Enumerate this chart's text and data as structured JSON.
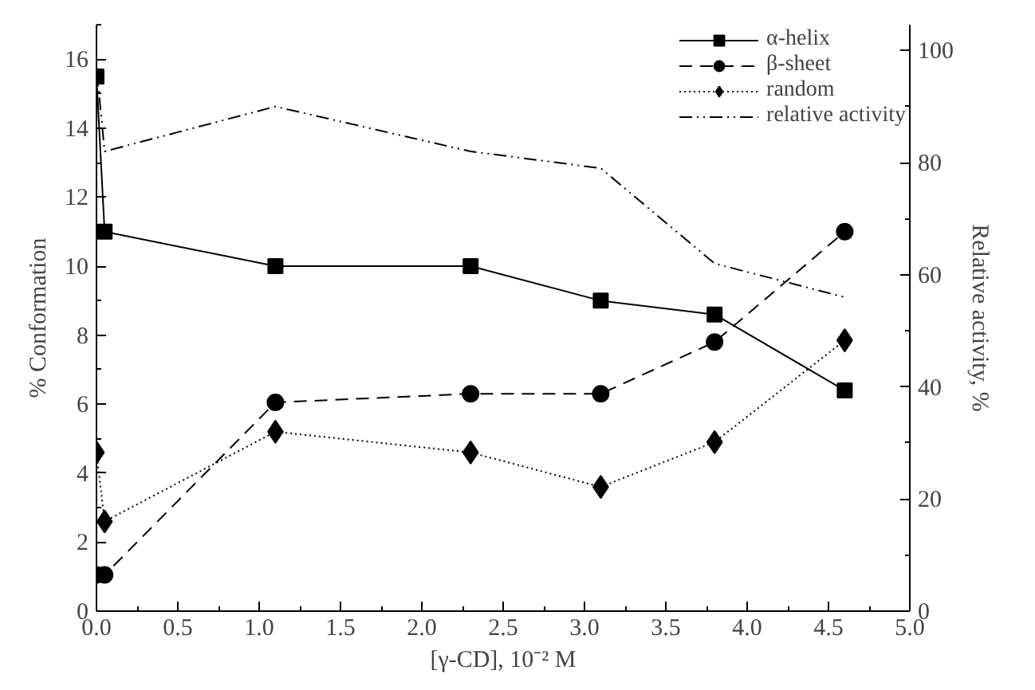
{
  "chart_data": {
    "type": "line",
    "xlabel": "[γ-CD], 10⁻² M",
    "ylabel": "% Conformation",
    "y2label": "Relative activity, %",
    "x": [
      0,
      0.05,
      1.1,
      2.3,
      3.1,
      3.8,
      4.6
    ],
    "xlim": [
      0,
      5
    ],
    "xticks": [
      {
        "value": 0,
        "label": "0.0"
      },
      0.5,
      {
        "value": 1,
        "label": "1.0"
      },
      1.5,
      {
        "value": 2,
        "label": "2.0"
      },
      2.5,
      {
        "value": 3,
        "label": "3.0"
      },
      3.5,
      {
        "value": 4,
        "label": "4.0"
      },
      4.5,
      {
        "value": 5,
        "label": "5.0"
      }
    ],
    "ylim": [
      0,
      17
    ],
    "yticks": [
      0,
      2,
      4,
      6,
      8,
      10,
      12,
      14,
      16
    ],
    "y2lim": [
      0,
      104.6
    ],
    "y2ticks": [
      0,
      20,
      40,
      60,
      80,
      100
    ],
    "grid": false,
    "legend": "top right",
    "series": [
      {
        "name": "α-helix",
        "color": "#000000",
        "marker": "square",
        "line_style": "solid",
        "values": [
          15.5,
          11,
          10,
          10,
          9,
          8.6,
          6.4
        ]
      },
      {
        "name": "β-sheet",
        "color": "#000000",
        "marker": "circle",
        "line_style": "dashed",
        "values": [
          1.05,
          1.05,
          6.05,
          6.3,
          6.3,
          7.8,
          11
        ]
      },
      {
        "name": "random",
        "color": "#000000",
        "marker": "diamond",
        "line_style": "dotted",
        "values": [
          4.6,
          2.6,
          5.2,
          4.6,
          3.6,
          4.9,
          7.85
        ]
      },
      {
        "name": "relative activity",
        "color": "#000000",
        "marker": "none",
        "line_style": "dashdotdot",
        "axis": "y2",
        "values": [
          97,
          82,
          90,
          82,
          79,
          62,
          56
        ]
      }
    ]
  }
}
